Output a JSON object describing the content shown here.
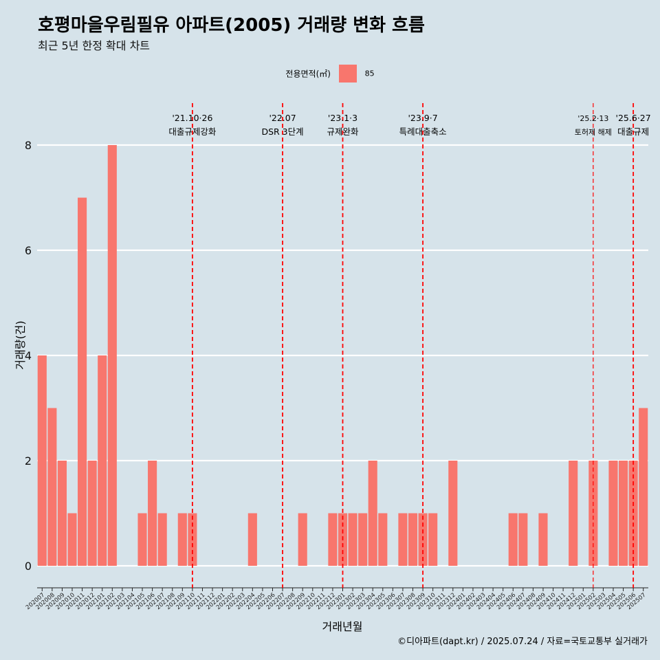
{
  "title": "호평마을우림필유 아파트(2005) 거래량 변화 흐름",
  "subtitle": "최근 5년 한정 확대 차트",
  "legend": {
    "title": "전용면적(㎡)",
    "label": "85",
    "color": "#f8766d"
  },
  "caption": "©디아파트(dapt.kr) / 2025.07.24 / 자료=국토교통부 실거래가",
  "chart_data": {
    "type": "bar",
    "xlabel": "거래년월",
    "ylabel": "거래량(건)",
    "ylim": [
      0,
      8
    ],
    "yticks": [
      0,
      2,
      4,
      6,
      8
    ],
    "grid": "horizontal",
    "legend_position": "top",
    "categories": [
      "202007",
      "202008",
      "202009",
      "202010",
      "202011",
      "202012",
      "202101",
      "202102",
      "202103",
      "202104",
      "202105",
      "202106",
      "202107",
      "202108",
      "202109",
      "202110",
      "202111",
      "202112",
      "202201",
      "202202",
      "202203",
      "202204",
      "202205",
      "202206",
      "202207",
      "202208",
      "202209",
      "202210",
      "202211",
      "202212",
      "202301",
      "202302",
      "202303",
      "202304",
      "202305",
      "202306",
      "202307",
      "202308",
      "202309",
      "202310",
      "202311",
      "202312",
      "202401",
      "202402",
      "202403",
      "202404",
      "202405",
      "202406",
      "202407",
      "202408",
      "202409",
      "202410",
      "202411",
      "202412",
      "202501",
      "202502",
      "202503",
      "202504",
      "202505",
      "202506",
      "202507"
    ],
    "series": [
      {
        "name": "85",
        "color": "#f8766d",
        "values": [
          4,
          3,
          2,
          1,
          7,
          2,
          4,
          8,
          0,
          0,
          1,
          2,
          1,
          0,
          1,
          1,
          0,
          0,
          0,
          0,
          0,
          1,
          0,
          0,
          0,
          0,
          1,
          0,
          0,
          1,
          1,
          1,
          1,
          2,
          1,
          0,
          1,
          1,
          1,
          1,
          0,
          2,
          0,
          0,
          0,
          0,
          0,
          1,
          1,
          0,
          1,
          0,
          0,
          2,
          0,
          2,
          0,
          2,
          2,
          2,
          3
        ]
      }
    ],
    "events": [
      {
        "date_line1": "'21.10·26",
        "date_line2": "대출규제강화",
        "at": "202110",
        "style": "dashed"
      },
      {
        "date_line1": "'22.07",
        "date_line2": "DSR 3단계",
        "at": "202207",
        "style": "dashed"
      },
      {
        "date_line1": "'23.1·3",
        "date_line2": "규제완화",
        "at": "202301",
        "style": "dashed"
      },
      {
        "date_line1": "'23.9·7",
        "date_line2": "특례대출축소",
        "at": "202309",
        "style": "dashed"
      },
      {
        "date_line1": "'25.2·13",
        "date_line2": "토허제 해제",
        "at": "202502",
        "style": "dashed-thin"
      },
      {
        "date_line1": "'25.6·27",
        "date_line2": "대출규제",
        "at": "202506",
        "style": "dashed"
      }
    ],
    "event_color": "#ff0000"
  }
}
